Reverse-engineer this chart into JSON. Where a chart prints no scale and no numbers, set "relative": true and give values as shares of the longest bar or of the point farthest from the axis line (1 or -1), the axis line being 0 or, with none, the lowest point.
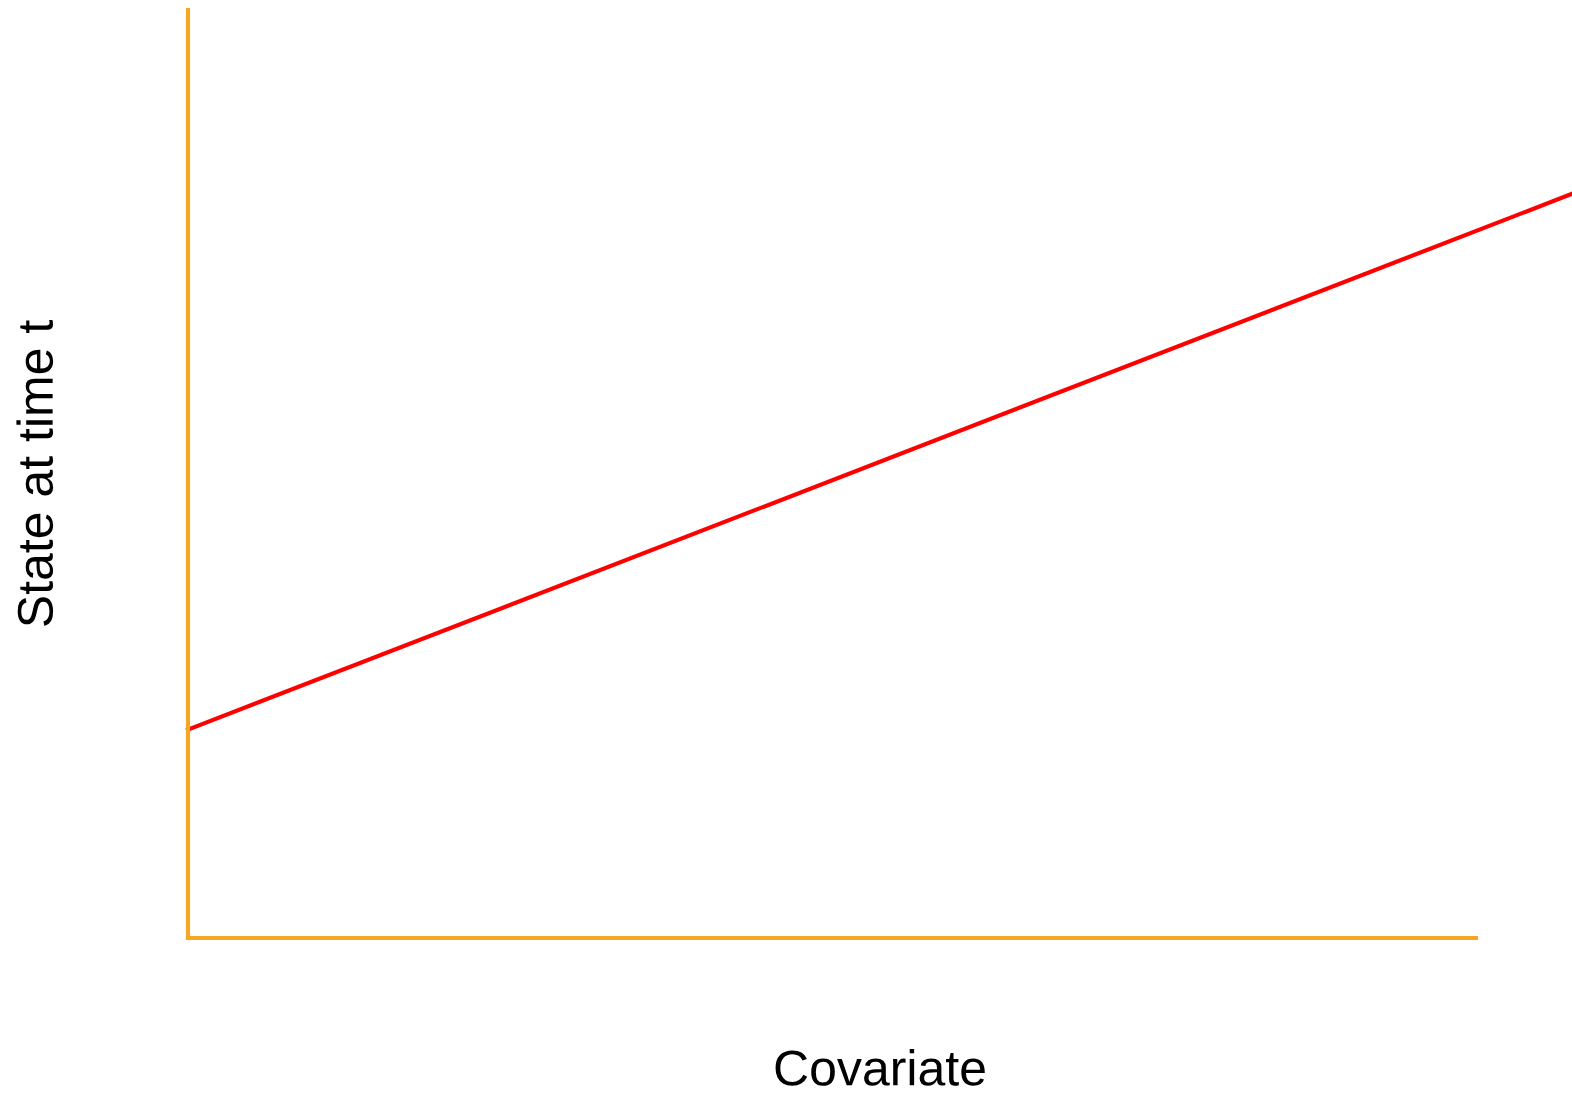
{
  "chart_data": {
    "type": "line",
    "relative": true,
    "xlabel": "Covariate",
    "ylabel": "State at time t",
    "categories": [
      null,
      null
    ],
    "series": [
      {
        "color": "#ff0000",
        "values": [
          0.28,
          1
        ]
      }
    ],
    "marker": "none",
    "line_style": "solid",
    "tick_labels": false
  }
}
